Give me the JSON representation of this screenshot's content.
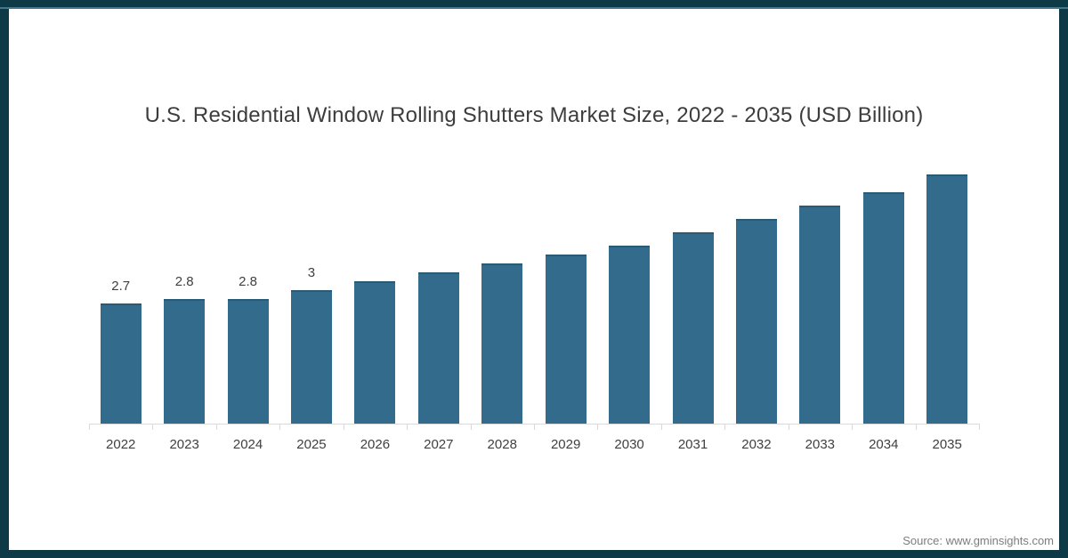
{
  "frame": {
    "border_color": "#0e3a48",
    "inner_highlight_color": "#44788f",
    "background": "#ffffff"
  },
  "chart_data": {
    "type": "bar",
    "title": "U.S. Residential Window Rolling Shutters Market Size, 2022 - 2035 (USD Billion)",
    "units": "USD Billion",
    "categories": [
      "2022",
      "2023",
      "2024",
      "2025",
      "2026",
      "2027",
      "2028",
      "2029",
      "2030",
      "2031",
      "2032",
      "2033",
      "2034",
      "2035"
    ],
    "values": [
      2.7,
      2.8,
      2.8,
      3.0,
      3.2,
      3.4,
      3.6,
      3.8,
      4.0,
      4.3,
      4.6,
      4.9,
      5.2,
      5.6
    ],
    "data_labels": [
      "2.7",
      "2.8",
      "2.8",
      "3",
      "",
      "",
      "",
      "",
      "",
      "",
      "",
      "",
      "",
      ""
    ],
    "xlabel": "",
    "ylabel": "",
    "ylim": [
      0,
      6
    ],
    "grid": false,
    "legend": false,
    "bar_color": "#336b8c",
    "bar_top_edge_color": "#2a5a76",
    "axis_line_color": "#d9d9d9",
    "label_color": "#404040",
    "title_color": "#3d3d3d"
  },
  "footer": {
    "source": "Source: www.gminsights.com"
  }
}
